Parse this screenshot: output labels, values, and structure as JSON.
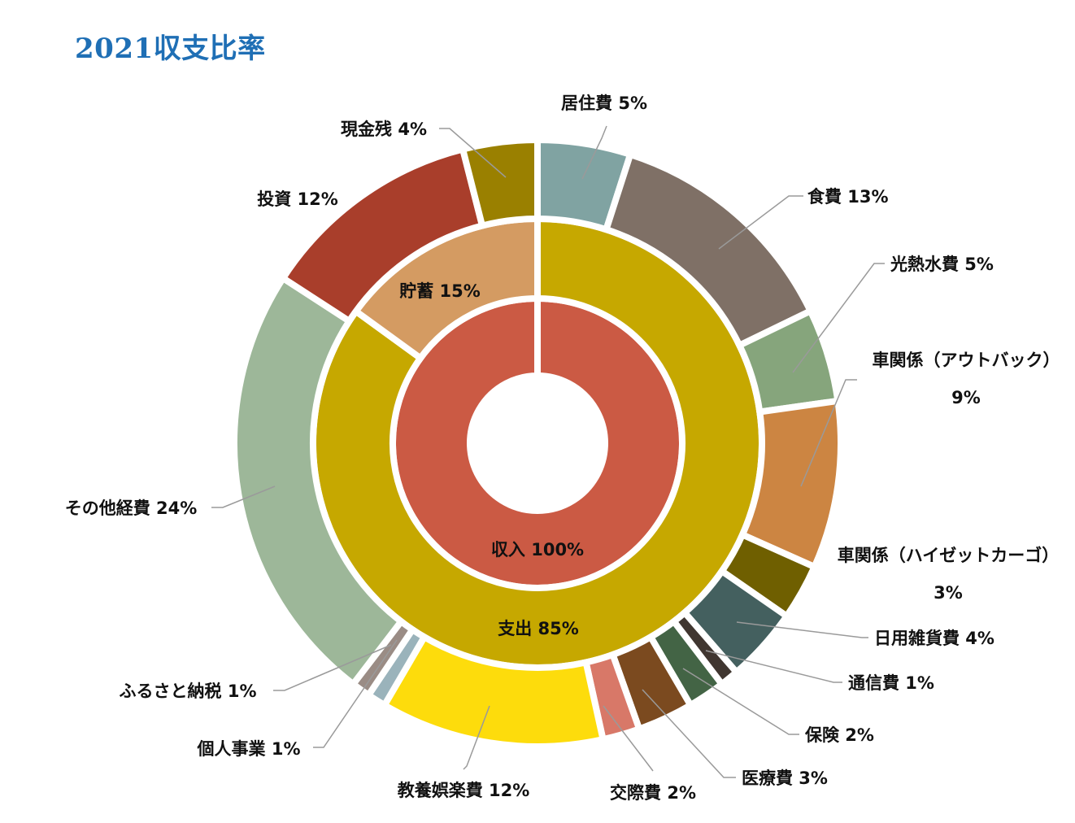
{
  "title": "2021収支比率",
  "chart_data": {
    "type": "pie",
    "title": "2021収支比率",
    "rings": [
      {
        "name": "",
        "slices": [
          {
            "label": "収入",
            "value": 100,
            "label_text": "収入 100%",
            "color": "#cb5a44"
          }
        ]
      },
      {
        "name": "",
        "slices": [
          {
            "label": "支出",
            "value": 85,
            "label_text": "支出 85%",
            "color": "#c6a800"
          },
          {
            "label": "貯蓄",
            "value": 15,
            "label_text": "貯蓄 15%",
            "color": "#d49b62"
          }
        ]
      },
      {
        "name": "",
        "slices": [
          {
            "label": "居住費",
            "value": 5,
            "color": "#80a3a2",
            "label_lines": [
              "居住費 5%"
            ]
          },
          {
            "label": "食費",
            "value": 13,
            "color": "#7f7066",
            "label_lines": [
              "食費 13%"
            ]
          },
          {
            "label": "光熱水費",
            "value": 5,
            "color": "#86a57c",
            "label_lines": [
              "光熱水費 5%"
            ]
          },
          {
            "label": "車関係（アウトバック）",
            "value": 9,
            "color": "#cc8542",
            "label_lines": [
              "車関係（アウトバック）",
              "9%"
            ]
          },
          {
            "label": "車関係（ハイゼットカーゴ）",
            "value": 3,
            "color": "#6f5f00",
            "label_lines": [
              "車関係（ハイゼットカーゴ）",
              "3%"
            ]
          },
          {
            "label": "日用雑貨費",
            "value": 4,
            "color": "#44605f",
            "label_lines": [
              "日用雑貨費 4%"
            ]
          },
          {
            "label": "通信費",
            "value": 1,
            "color": "#403630",
            "label_lines": [
              "通信費 1%"
            ]
          },
          {
            "label": "保険",
            "value": 2,
            "color": "#436445",
            "label_lines": [
              "保険 2%"
            ]
          },
          {
            "label": "医療費",
            "value": 3,
            "color": "#7b4a1f",
            "label_lines": [
              "医療費 3%"
            ]
          },
          {
            "label": "交際費",
            "value": 2,
            "color": "#d87868",
            "label_lines": [
              "交際費 2%"
            ]
          },
          {
            "label": "教養娯楽費",
            "value": 12,
            "color": "#fddc0c",
            "label_lines": [
              "教養娯楽費 12%"
            ]
          },
          {
            "label": "個人事業",
            "value": 1,
            "color": "#9ab3bb",
            "label_lines": [
              "個人事業 1%"
            ]
          },
          {
            "label": "ふるさと納税",
            "value": 1,
            "color": "#9a8c85",
            "label_lines": [
              "ふるさと納税 1%"
            ]
          },
          {
            "label": "その他経費",
            "value": 24,
            "color": "#9db799",
            "label_lines": [
              "その他経費 24%"
            ]
          },
          {
            "label": "投資",
            "value": 12,
            "color": "#a93e2b",
            "label_lines": [
              "投資 12%"
            ]
          },
          {
            "label": "現金残",
            "value": 4,
            "color": "#9a8000",
            "label_lines": [
              "現金残 4%"
            ]
          }
        ]
      }
    ]
  }
}
